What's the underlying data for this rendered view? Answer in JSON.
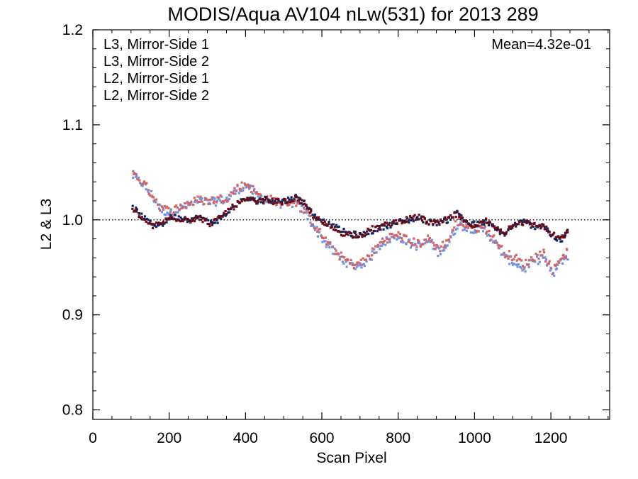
{
  "chart_data": {
    "type": "scatter",
    "title": "MODIS/Aqua AV104 nLw(531) for 2013 289",
    "xlabel": "Scan Pixel",
    "ylabel": "L2 & L3",
    "xlim": [
      0,
      1354
    ],
    "ylim": [
      0.79,
      1.2
    ],
    "xticks": [
      0,
      200,
      400,
      600,
      800,
      1000,
      1200
    ],
    "xtick_labels": [
      "0",
      "200",
      "400",
      "600",
      "800",
      "1000",
      "1200"
    ],
    "yticks": [
      0.8,
      0.9,
      1.0,
      1.1,
      1.2
    ],
    "ytick_labels": [
      "0.8",
      "0.9",
      "1.0",
      "1.1",
      "1.2"
    ],
    "reference_line": {
      "y": 1.0,
      "style": "dotted"
    },
    "annotation": {
      "text": "Mean=4.32e-01",
      "color": "#d06060",
      "position": "top-right"
    },
    "legend_position": "top-left",
    "grid": false,
    "series": [
      {
        "name": "L3, Mirror-Side 1",
        "color": "#0a2a6a",
        "x": [
          105,
          130,
          155,
          180,
          205,
          230,
          255,
          280,
          305,
          330,
          355,
          380,
          405,
          430,
          455,
          480,
          505,
          530,
          555,
          580,
          605,
          630,
          655,
          680,
          705,
          730,
          755,
          780,
          805,
          830,
          855,
          880,
          905,
          930,
          955,
          980,
          1005,
          1030,
          1055,
          1080,
          1105,
          1130,
          1155,
          1180,
          1205,
          1230,
          1245
        ],
        "values": [
          1.013,
          1.003,
          0.995,
          0.995,
          1.003,
          1.003,
          1.0,
          1.003,
          0.997,
          1.0,
          1.008,
          1.018,
          1.022,
          1.02,
          1.022,
          1.02,
          1.02,
          1.024,
          1.018,
          1.005,
          0.998,
          0.993,
          0.988,
          0.985,
          0.984,
          0.988,
          0.992,
          0.995,
          0.998,
          1.0,
          1.002,
          0.998,
          0.997,
          1.0,
          1.008,
          0.997,
          0.995,
          0.998,
          0.99,
          0.985,
          0.995,
          0.998,
          0.993,
          0.995,
          0.982,
          0.978,
          0.99
        ]
      },
      {
        "name": "L3, Mirror-Side 2",
        "color": "#6b0a12",
        "x": [
          105,
          130,
          155,
          180,
          205,
          230,
          255,
          280,
          305,
          330,
          355,
          380,
          405,
          430,
          455,
          480,
          505,
          530,
          555,
          580,
          605,
          630,
          655,
          680,
          705,
          730,
          755,
          780,
          805,
          830,
          855,
          880,
          905,
          930,
          955,
          980,
          1005,
          1030,
          1055,
          1080,
          1105,
          1130,
          1155,
          1180,
          1205,
          1230,
          1245
        ],
        "values": [
          1.01,
          1.002,
          0.993,
          0.997,
          1.002,
          1.001,
          1.001,
          1.002,
          0.996,
          1.001,
          1.01,
          1.017,
          1.021,
          1.019,
          1.021,
          1.019,
          1.019,
          1.023,
          1.016,
          1.003,
          0.996,
          0.991,
          0.986,
          0.984,
          0.985,
          0.99,
          0.993,
          0.996,
          0.999,
          1.001,
          1.003,
          0.997,
          0.996,
          1.001,
          1.006,
          0.996,
          0.994,
          0.999,
          0.992,
          0.987,
          0.997,
          0.997,
          0.995,
          0.993,
          0.984,
          0.98,
          0.988
        ]
      },
      {
        "name": "L2, Mirror-Side 1",
        "color": "#6f94e6",
        "x": [
          105,
          130,
          155,
          180,
          205,
          230,
          255,
          280,
          305,
          330,
          355,
          380,
          405,
          430,
          455,
          480,
          505,
          530,
          555,
          580,
          605,
          630,
          655,
          680,
          705,
          730,
          755,
          780,
          805,
          830,
          855,
          880,
          905,
          930,
          955,
          980,
          1005,
          1030,
          1055,
          1080,
          1105,
          1130,
          1155,
          1180,
          1205,
          1230,
          1245
        ],
        "values": [
          1.046,
          1.038,
          1.025,
          1.01,
          1.007,
          1.012,
          1.016,
          1.019,
          1.018,
          1.02,
          1.022,
          1.032,
          1.036,
          1.025,
          1.02,
          1.018,
          1.016,
          1.018,
          1.008,
          0.993,
          0.978,
          0.967,
          0.958,
          0.951,
          0.953,
          0.962,
          0.975,
          0.98,
          0.982,
          0.975,
          0.972,
          0.978,
          0.966,
          0.974,
          0.995,
          0.992,
          0.99,
          0.988,
          0.975,
          0.96,
          0.955,
          0.948,
          0.955,
          0.962,
          0.942,
          0.958,
          0.963
        ]
      },
      {
        "name": "L2, Mirror-Side 2",
        "color": "#d26565",
        "x": [
          105,
          130,
          155,
          180,
          205,
          230,
          255,
          280,
          305,
          330,
          355,
          380,
          405,
          430,
          455,
          480,
          505,
          530,
          555,
          580,
          605,
          630,
          655,
          680,
          705,
          730,
          755,
          780,
          805,
          830,
          855,
          880,
          905,
          930,
          955,
          980,
          1005,
          1030,
          1055,
          1080,
          1105,
          1130,
          1155,
          1180,
          1205,
          1230,
          1245
        ],
        "values": [
          1.048,
          1.04,
          1.027,
          1.012,
          1.009,
          1.014,
          1.018,
          1.021,
          1.02,
          1.022,
          1.024,
          1.034,
          1.038,
          1.027,
          1.022,
          1.02,
          1.018,
          1.02,
          1.01,
          0.995,
          0.98,
          0.969,
          0.96,
          0.953,
          0.955,
          0.964,
          0.977,
          0.982,
          0.984,
          0.977,
          0.975,
          0.98,
          0.97,
          0.978,
          0.998,
          0.994,
          0.992,
          0.99,
          0.978,
          0.965,
          0.96,
          0.953,
          0.96,
          0.966,
          0.947,
          0.962,
          0.966
        ]
      }
    ]
  }
}
